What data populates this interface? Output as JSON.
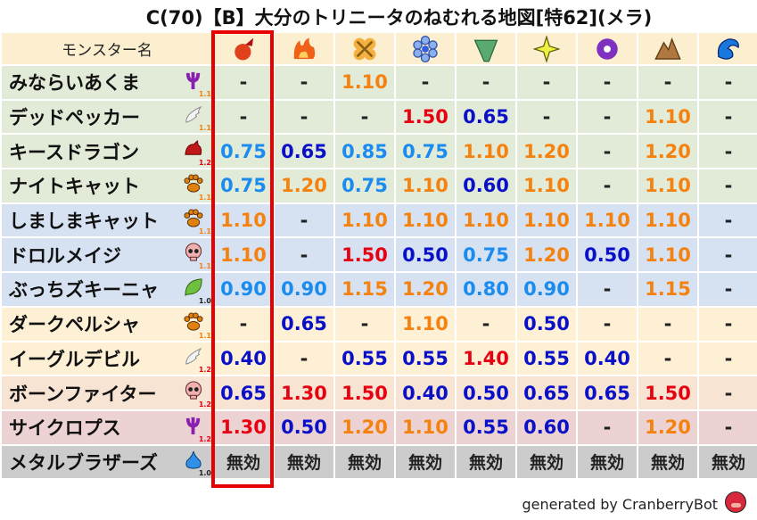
{
  "title": "C(70)【B】大分のトリニータのねむれる地図[特62](メラ)",
  "header": {
    "name_label": "モンスター名",
    "elements": [
      "mera-fire-icon",
      "gira-flame-icon",
      "io-explosion-icon",
      "hyado-ice-icon",
      "bagi-wind-icon",
      "dein-light-icon",
      "doruma-dark-icon",
      "jibaria-earth-icon",
      "water-wave-icon"
    ],
    "highlighted_column": 0
  },
  "colors": {
    "red": "#e60012",
    "orange": "#f5820f",
    "lightblue": "#1a8cf0",
    "darkblue": "#0a10c8",
    "highlight": "#e60000"
  },
  "rows": [
    {
      "name": "みならいあくま",
      "icon": "demon-trident-icon",
      "mult": "1.1",
      "bg": "green",
      "values": [
        "-",
        "-",
        "1.10",
        "-",
        "-",
        "-",
        "-",
        "-",
        "-"
      ]
    },
    {
      "name": "デッドペッカー",
      "icon": "wing-icon",
      "mult": "1.1",
      "bg": "green",
      "values": [
        "-",
        "-",
        "-",
        "1.50",
        "0.65",
        "-",
        "-",
        "1.10",
        "-"
      ]
    },
    {
      "name": "キースドラゴン",
      "icon": "dragon-icon",
      "mult": "1.2",
      "bg": "green",
      "values": [
        "0.75",
        "0.65",
        "0.85",
        "0.75",
        "1.10",
        "1.20",
        "-",
        "1.20",
        "-"
      ]
    },
    {
      "name": "ナイトキャット",
      "icon": "paw-icon",
      "mult": "1.1",
      "bg": "green",
      "values": [
        "0.75",
        "1.20",
        "0.75",
        "1.10",
        "0.60",
        "1.10",
        "-",
        "1.10",
        "-"
      ]
    },
    {
      "name": "しましまキャット",
      "icon": "paw-icon",
      "mult": "1.1",
      "bg": "blue",
      "values": [
        "1.10",
        "-",
        "1.10",
        "1.10",
        "1.10",
        "1.10",
        "1.10",
        "1.10",
        "-"
      ]
    },
    {
      "name": "ドロルメイジ",
      "icon": "skull-icon",
      "mult": "1.1",
      "bg": "blue",
      "values": [
        "1.10",
        "-",
        "1.50",
        "0.50",
        "0.75",
        "1.20",
        "0.50",
        "1.10",
        "-"
      ]
    },
    {
      "name": "ぶっちズキーニャ",
      "icon": "leaf-icon",
      "mult": "1.0",
      "bg": "blue",
      "values": [
        "0.90",
        "0.90",
        "1.15",
        "1.20",
        "0.80",
        "0.90",
        "-",
        "1.15",
        "-"
      ]
    },
    {
      "name": "ダークペルシャ",
      "icon": "paw-icon",
      "mult": "1.1",
      "bg": "yellow",
      "values": [
        "-",
        "0.65",
        "-",
        "1.10",
        "-",
        "0.50",
        "-",
        "-",
        "-"
      ]
    },
    {
      "name": "イーグルデビル",
      "icon": "wing-icon",
      "mult": "1.2",
      "bg": "yellow",
      "values": [
        "0.40",
        "-",
        "0.55",
        "0.55",
        "1.40",
        "0.55",
        "0.40",
        "-",
        "-"
      ]
    },
    {
      "name": "ボーンファイター",
      "icon": "skull-icon",
      "mult": "1.2",
      "bg": "orange",
      "values": [
        "0.65",
        "1.30",
        "1.50",
        "0.40",
        "0.50",
        "0.65",
        "0.65",
        "1.50",
        "-"
      ]
    },
    {
      "name": "サイクロプス",
      "icon": "demon-trident-icon",
      "mult": "1.2",
      "bg": "pink",
      "values": [
        "1.30",
        "0.50",
        "1.20",
        "1.10",
        "0.55",
        "0.60",
        "-",
        "1.20",
        "-"
      ]
    },
    {
      "name": "メタルブラザーズ",
      "icon": "slime-icon",
      "mult": "1.0",
      "bg": "gray",
      "values": [
        "無効",
        "無効",
        "無効",
        "無効",
        "無効",
        "無効",
        "無効",
        "無効",
        "無効"
      ]
    }
  ],
  "footer": {
    "text": "generated by CranberryBot",
    "logo": "cranberry-bot-icon"
  }
}
